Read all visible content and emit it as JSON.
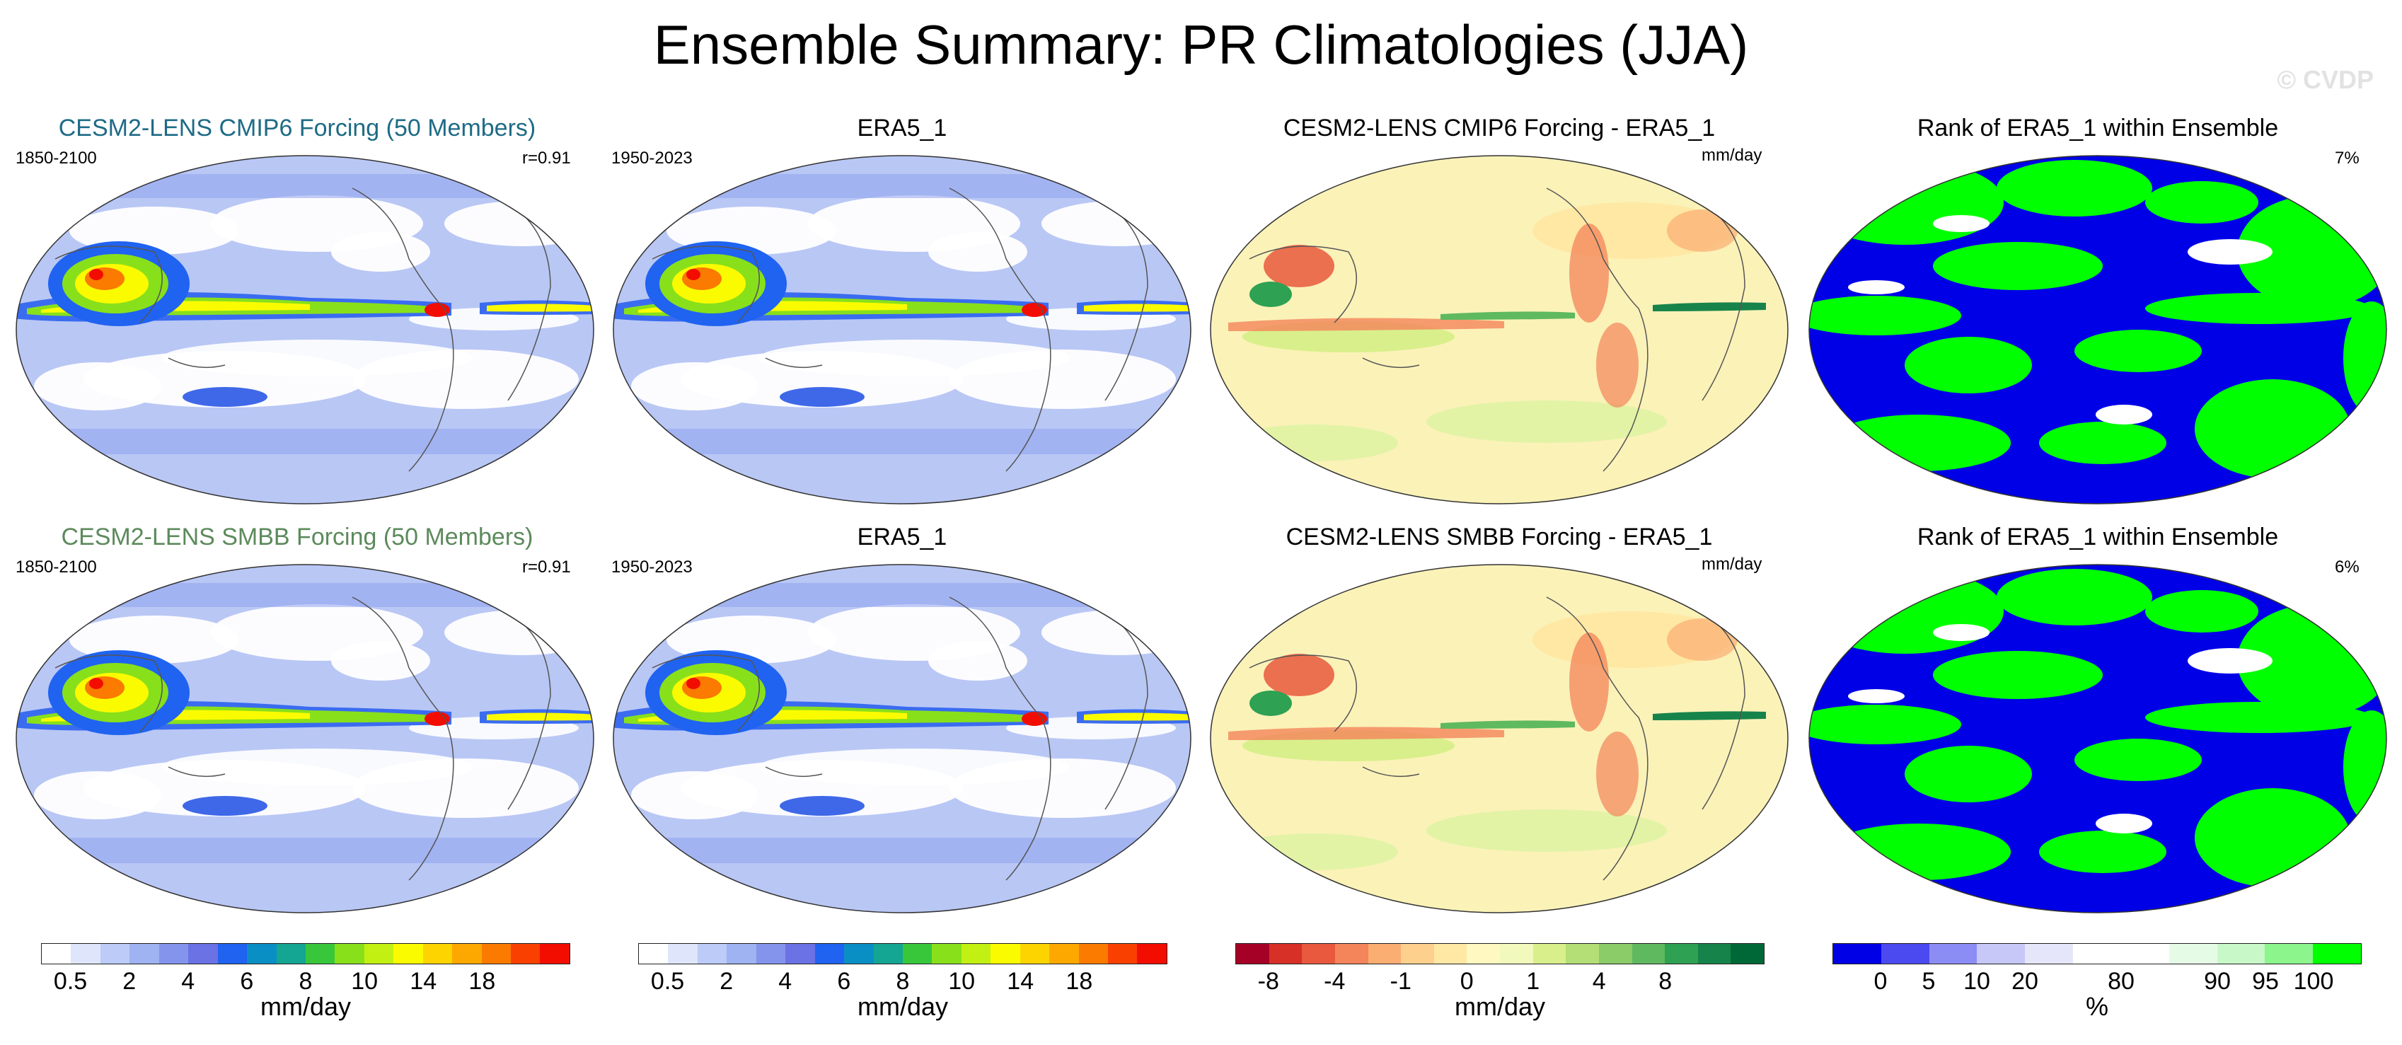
{
  "title": "Ensemble Summary: PR Climatologies (JJA)",
  "watermark": "© CVDP",
  "rows": [
    {
      "model_title": "CESM2-LENS CMIP6 Forcing (50 Members)",
      "model_title_color": "#1e6b86",
      "model_years": "1850-2100",
      "pattern_corr": "r=0.91",
      "obs_title": "ERA5_1",
      "obs_years": "1950-2023",
      "diff_title": "CESM2-LENS CMIP6 Forcing - ERA5_1",
      "diff_unit": "mm/day",
      "rank_title": "Rank of ERA5_1 within Ensemble",
      "rank_pct": "7%"
    },
    {
      "model_title": "CESM2-LENS SMBB Forcing (50 Members)",
      "model_title_color": "#5c8a5c",
      "model_years": "1850-2100",
      "pattern_corr": "r=0.91",
      "obs_title": "ERA5_1",
      "obs_years": "1950-2023",
      "diff_title": "CESM2-LENS SMBB Forcing - ERA5_1",
      "diff_unit": "mm/day",
      "rank_title": "Rank of ERA5_1 within Ensemble",
      "rank_pct": "6%"
    }
  ],
  "colorbars": [
    {
      "colors": [
        "#ffffff",
        "#dfe6fb",
        "#bccbf7",
        "#9fb2f1",
        "#8494ec",
        "#6a72e4",
        "#1f63f0",
        "#0a8fc4",
        "#14a593",
        "#38c73a",
        "#88e01b",
        "#c2f012",
        "#fbfb00",
        "#fdd300",
        "#fca800",
        "#fb7a00",
        "#f94000",
        "#f20d00"
      ],
      "ticks": [
        "0.5",
        "2",
        "4",
        "6",
        "8",
        "10",
        "14",
        "18"
      ],
      "tick_index": [
        1,
        3,
        5,
        7,
        9,
        11,
        13,
        15
      ],
      "unit": "mm/day"
    },
    {
      "colors": [
        "#ffffff",
        "#dfe6fb",
        "#bccbf7",
        "#9fb2f1",
        "#8494ec",
        "#6a72e4",
        "#1f63f0",
        "#0a8fc4",
        "#14a593",
        "#38c73a",
        "#88e01b",
        "#c2f012",
        "#fbfb00",
        "#fdd300",
        "#fca800",
        "#fb7a00",
        "#f94000",
        "#f20d00"
      ],
      "ticks": [
        "0.5",
        "2",
        "4",
        "6",
        "8",
        "10",
        "14",
        "18"
      ],
      "tick_index": [
        1,
        3,
        5,
        7,
        9,
        11,
        13,
        15
      ],
      "unit": "mm/day"
    },
    {
      "colors": [
        "#a50026",
        "#d73027",
        "#e8593d",
        "#f4845a",
        "#fbae72",
        "#fdd08e",
        "#fee8a4",
        "#fff8c0",
        "#f2f9bd",
        "#d9ef8b",
        "#b4de76",
        "#8bcc68",
        "#5fb95f",
        "#2ea153",
        "#16844a",
        "#006837"
      ],
      "ticks": [
        "-8",
        "-4",
        "-1",
        "0",
        "1",
        "4",
        "8"
      ],
      "tick_index": [
        1,
        3,
        5,
        7,
        9,
        11,
        13
      ],
      "unit": "mm/day"
    },
    {
      "colors": [
        "#0000e6",
        "#4a4af0",
        "#8c8cf5",
        "#c8c8f8",
        "#e6e6fb",
        "#ffffff",
        "#ffffff",
        "#e6fbe6",
        "#c8f8c8",
        "#8cf58c",
        "#00ff00"
      ],
      "ticks": [
        "0",
        "5",
        "10",
        "20",
        "80",
        "90",
        "95",
        "100"
      ],
      "tick_index": [
        1,
        2,
        3,
        4,
        6,
        8,
        9,
        10
      ],
      "unit": "%"
    }
  ]
}
